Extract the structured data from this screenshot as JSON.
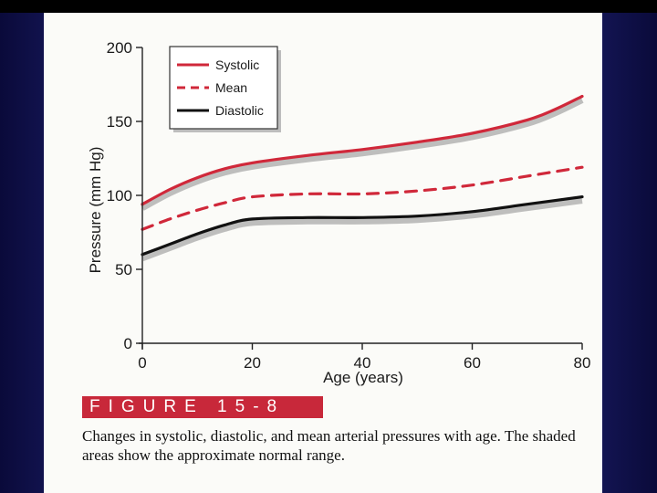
{
  "figure": {
    "label": "FIGURE 15-8",
    "caption": "Changes in systolic, diastolic, and mean arterial pressures with age. The shaded areas show the approximate normal range."
  },
  "chart_data": {
    "type": "line",
    "title": "",
    "xlabel": "Age (years)",
    "ylabel": "Pressure (mm Hg)",
    "xlim": [
      0,
      80
    ],
    "ylim": [
      0,
      200
    ],
    "xticks": [
      0,
      20,
      40,
      60,
      80
    ],
    "yticks": [
      0,
      50,
      100,
      150,
      200
    ],
    "legend_position": "top-left",
    "series": [
      {
        "name": "Systolic",
        "color": "#d0283a",
        "style": "solid",
        "shaded": true,
        "x": [
          0,
          5,
          10,
          15,
          20,
          30,
          40,
          50,
          60,
          70,
          75,
          80
        ],
        "y": [
          94,
          104,
          112,
          118,
          122,
          127,
          131,
          136,
          142,
          151,
          158,
          167
        ]
      },
      {
        "name": "Mean",
        "color": "#d0283a",
        "style": "dashed",
        "shaded": false,
        "x": [
          0,
          5,
          10,
          15,
          20,
          30,
          40,
          50,
          60,
          70,
          80
        ],
        "y": [
          77,
          84,
          90,
          95,
          99,
          101,
          101,
          103,
          107,
          113,
          119
        ]
      },
      {
        "name": "Diastolic",
        "color": "#111111",
        "style": "solid",
        "shaded": true,
        "x": [
          0,
          5,
          10,
          15,
          20,
          30,
          40,
          50,
          60,
          70,
          80
        ],
        "y": [
          60,
          67,
          74,
          80,
          84,
          85,
          85,
          86,
          89,
          94,
          99
        ]
      }
    ]
  }
}
